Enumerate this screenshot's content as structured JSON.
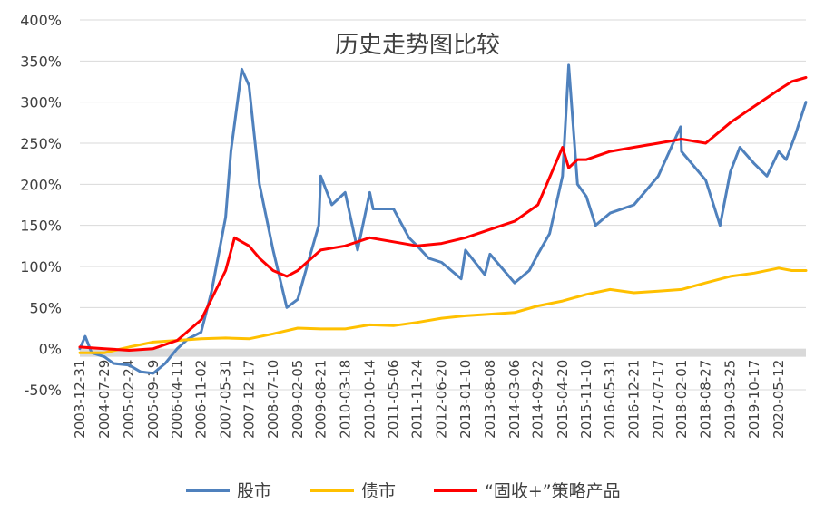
{
  "chart_data": {
    "type": "line",
    "title": "历史走势图比较",
    "xlabel": "",
    "ylabel": "",
    "ylim": [
      -50,
      400
    ],
    "yticks": [
      "400%",
      "350%",
      "300%",
      "250%",
      "200%",
      "150%",
      "100%",
      "50%",
      "0%",
      "-50%"
    ],
    "ytick_values": [
      400,
      350,
      300,
      250,
      200,
      150,
      100,
      50,
      0,
      -50
    ],
    "xticks": [
      "2003-12-31",
      "2004-07-29",
      "2005-02-24",
      "2005-09-19",
      "2006-04-11",
      "2006-11-02",
      "2007-05-31",
      "2007-12-17",
      "2008-07-10",
      "2009-02-05",
      "2009-08-21",
      "2010-03-18",
      "2010-10-14",
      "2011-05-06",
      "2011-11-24",
      "2012-06-20",
      "2013-01-10",
      "2013-08-08",
      "2014-03-06",
      "2014-09-22",
      "2015-04-20",
      "2015-11-10",
      "2016-05-31",
      "2016-12-21",
      "2017-07-17",
      "2018-02-01",
      "2018-08-27",
      "2019-03-25",
      "2019-10-17",
      "2020-05-12"
    ],
    "grid": true,
    "legend_position": "bottom",
    "series": [
      {
        "name": "股市",
        "color": "#4F81BD",
        "x": [
          "2003-12-31",
          "2004-02-15",
          "2004-04-10",
          "2004-07-29",
          "2004-10-15",
          "2005-02-24",
          "2005-06-01",
          "2005-09-19",
          "2005-12-30",
          "2006-04-11",
          "2006-07-15",
          "2006-11-02",
          "2007-01-31",
          "2007-05-31",
          "2007-07-15",
          "2007-10-16",
          "2007-12-17",
          "2008-03-15",
          "2008-07-10",
          "2008-11-04",
          "2009-02-05",
          "2009-05-15",
          "2009-08-04",
          "2009-08-21",
          "2009-11-24",
          "2010-03-18",
          "2010-07-02",
          "2010-10-14",
          "2010-11-12",
          "2011-05-06",
          "2011-09-15",
          "2011-11-24",
          "2012-03-01",
          "2012-06-20",
          "2012-12-04",
          "2013-01-10",
          "2013-06-25",
          "2013-08-08",
          "2014-03-06",
          "2014-07-10",
          "2014-09-22",
          "2014-12-31",
          "2015-04-20",
          "2015-06-12",
          "2015-08-26",
          "2015-11-10",
          "2016-01-28",
          "2016-05-31",
          "2016-12-21",
          "2017-07-17",
          "2018-01-24",
          "2018-02-01",
          "2018-08-27",
          "2018-12-28",
          "2019-03-25",
          "2019-06-15",
          "2019-10-17",
          "2020-02-01",
          "2020-05-12",
          "2020-07-15",
          "2020-10-01",
          "2020-12-31"
        ],
        "values": [
          0,
          15,
          -5,
          -10,
          -18,
          -20,
          -28,
          -30,
          -18,
          0,
          12,
          20,
          70,
          160,
          240,
          340,
          320,
          200,
          120,
          50,
          60,
          110,
          150,
          210,
          175,
          190,
          120,
          190,
          170,
          170,
          135,
          125,
          110,
          105,
          85,
          120,
          90,
          115,
          80,
          95,
          115,
          140,
          210,
          345,
          200,
          185,
          150,
          165,
          175,
          210,
          270,
          240,
          205,
          150,
          215,
          245,
          225,
          210,
          240,
          230,
          260,
          300
        ]
      },
      {
        "name": "债市",
        "color": "#FFC000",
        "x": [
          "2003-12-31",
          "2004-07-29",
          "2005-02-24",
          "2005-09-19",
          "2006-04-11",
          "2006-11-02",
          "2007-05-31",
          "2007-12-17",
          "2008-07-10",
          "2009-02-05",
          "2009-08-21",
          "2010-03-18",
          "2010-10-14",
          "2011-05-06",
          "2011-11-24",
          "2012-06-20",
          "2013-01-10",
          "2013-08-08",
          "2014-03-06",
          "2014-09-22",
          "2015-04-20",
          "2015-11-10",
          "2016-05-31",
          "2016-12-21",
          "2017-07-17",
          "2018-02-01",
          "2018-08-27",
          "2019-03-25",
          "2019-10-17",
          "2020-05-12",
          "2020-09-01",
          "2020-12-31"
        ],
        "values": [
          -5,
          -5,
          2,
          8,
          10,
          12,
          13,
          12,
          18,
          25,
          24,
          24,
          29,
          28,
          32,
          37,
          40,
          42,
          44,
          52,
          58,
          66,
          72,
          68,
          70,
          72,
          80,
          88,
          92,
          98,
          95,
          95
        ]
      },
      {
        "name": "“固收+”策略产品",
        "color": "#FF0000",
        "x": [
          "2003-12-31",
          "2004-07-29",
          "2005-02-24",
          "2005-09-19",
          "2006-04-11",
          "2006-11-02",
          "2007-05-31",
          "2007-08-15",
          "2007-12-17",
          "2008-03-15",
          "2008-07-10",
          "2008-11-04",
          "2009-02-05",
          "2009-08-21",
          "2010-03-18",
          "2010-10-14",
          "2011-05-06",
          "2011-11-24",
          "2012-06-20",
          "2013-01-10",
          "2013-08-08",
          "2014-03-06",
          "2014-09-22",
          "2015-04-20",
          "2015-06-12",
          "2015-08-26",
          "2015-11-10",
          "2016-05-31",
          "2016-12-21",
          "2017-07-17",
          "2018-02-01",
          "2018-08-27",
          "2019-03-25",
          "2019-10-17",
          "2020-05-12",
          "2020-09-01",
          "2020-12-31"
        ],
        "values": [
          2,
          0,
          -2,
          0,
          10,
          35,
          95,
          135,
          125,
          110,
          95,
          88,
          95,
          120,
          125,
          135,
          130,
          125,
          128,
          135,
          145,
          155,
          175,
          245,
          220,
          230,
          230,
          240,
          245,
          250,
          255,
          250,
          275,
          295,
          315,
          325,
          330
        ]
      }
    ]
  }
}
